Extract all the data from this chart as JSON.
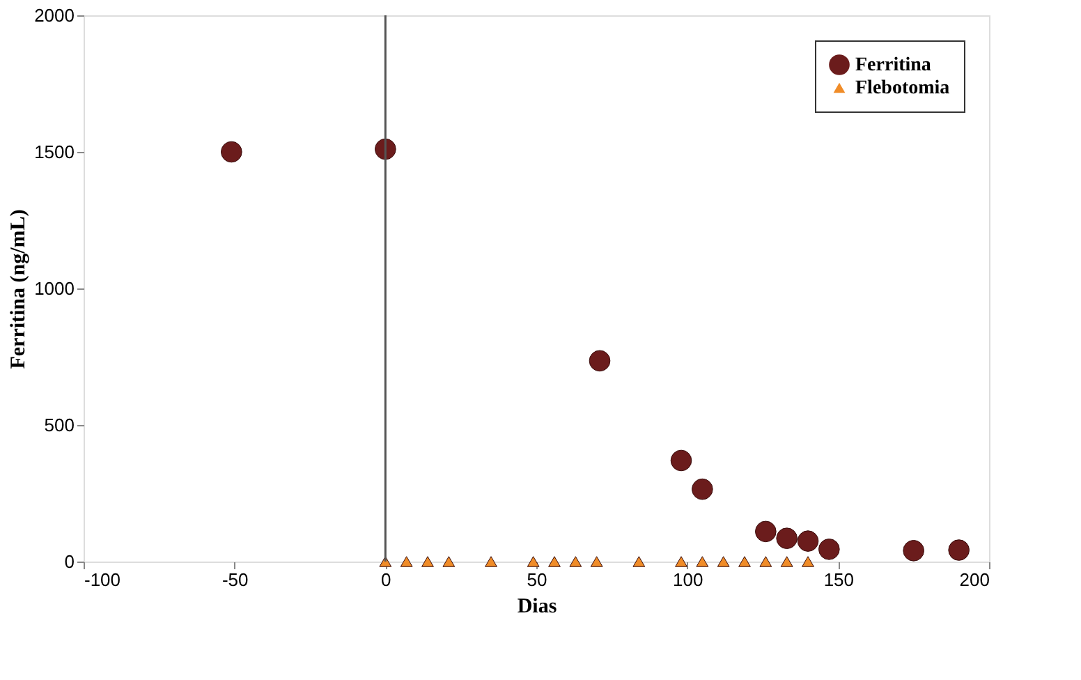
{
  "chart_data": {
    "type": "scatter",
    "xlabel": "Dias",
    "ylabel": "Ferritina (ng/mL)",
    "xlim": [
      -100,
      200
    ],
    "xticks": [
      -100,
      -50,
      0,
      50,
      100,
      150,
      200
    ],
    "ylim": [
      0,
      2000
    ],
    "yticks": [
      0,
      500,
      1000,
      1500,
      2000
    ],
    "grid": false,
    "legend": "top right",
    "ref_lines": [
      {
        "axis": "x",
        "value": 0,
        "color": "#555555"
      }
    ],
    "series": [
      {
        "name": "Ferritina",
        "color": "#6b1c1c",
        "marker": "circle",
        "x": [
          -51,
          0,
          71,
          98,
          105,
          126,
          133,
          140,
          147,
          175,
          190
        ],
        "values": [
          1500,
          1510,
          735,
          370,
          265,
          110,
          85,
          75,
          45,
          40,
          42
        ]
      },
      {
        "name": "Flebotomia",
        "color": "#f08c28",
        "marker": "triangle",
        "x": [
          0,
          7,
          14,
          21,
          35,
          49,
          56,
          63,
          70,
          84,
          98,
          105,
          112,
          119,
          126,
          133,
          140
        ],
        "values": [
          0,
          0,
          0,
          0,
          0,
          0,
          0,
          0,
          0,
          0,
          0,
          0,
          0,
          0,
          0,
          0,
          0
        ]
      }
    ]
  }
}
